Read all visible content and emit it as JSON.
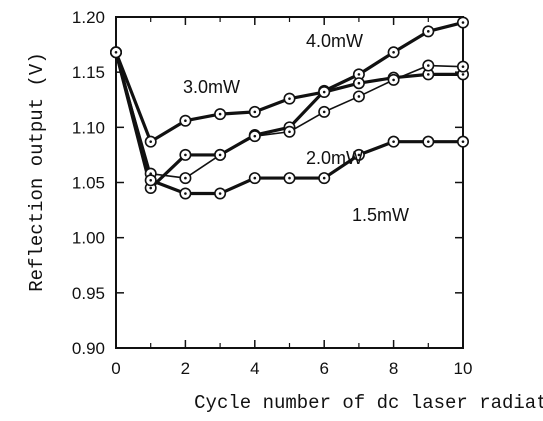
{
  "chart_data": {
    "type": "line",
    "xlabel": "Cycle number of dc laser radiation",
    "ylabel": "Reflection output (V)",
    "xlim": [
      0,
      10
    ],
    "ylim": [
      0.9,
      1.2
    ],
    "x_ticks": [
      "0",
      "2",
      "4",
      "6",
      "8",
      "10"
    ],
    "y_ticks": [
      "0.90",
      "0.95",
      "1.00",
      "1.05",
      "1.10",
      "1.15",
      "1.20"
    ],
    "grid": false,
    "legend": "inline labels",
    "x": [
      0,
      1,
      2,
      3,
      4,
      5,
      6,
      7,
      8,
      9,
      10
    ],
    "series": [
      {
        "name": "4.0mW",
        "values": [
          1.168,
          1.045,
          1.075,
          1.075,
          1.093,
          1.1,
          1.133,
          1.148,
          1.168,
          1.187,
          1.195
        ],
        "stroke": "heavy"
      },
      {
        "name": "3.0mW",
        "values": [
          1.168,
          1.087,
          1.106,
          1.112,
          1.114,
          1.126,
          1.132,
          1.14,
          1.145,
          1.148,
          1.148
        ],
        "stroke": "heavy"
      },
      {
        "name": "2.0mW",
        "values": [
          1.168,
          1.058,
          1.054,
          1.075,
          1.092,
          1.096,
          1.114,
          1.128,
          1.143,
          1.156,
          1.155
        ],
        "stroke": "light"
      },
      {
        "name": "1.5mW",
        "values": [
          1.168,
          1.052,
          1.04,
          1.04,
          1.054,
          1.054,
          1.054,
          1.075,
          1.087,
          1.087,
          1.087
        ],
        "stroke": "heavy"
      }
    ]
  }
}
